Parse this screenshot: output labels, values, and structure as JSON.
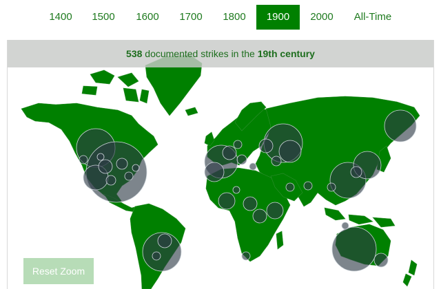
{
  "tabs": [
    {
      "label": "1400",
      "active": false
    },
    {
      "label": "1500",
      "active": false
    },
    {
      "label": "1600",
      "active": false
    },
    {
      "label": "1700",
      "active": false
    },
    {
      "label": "1800",
      "active": false
    },
    {
      "label": "1900",
      "active": true
    },
    {
      "label": "2000",
      "active": false
    },
    {
      "label": "All-Time",
      "active": false
    }
  ],
  "banner": {
    "count": "538",
    "text_middle": " documented strikes in the ",
    "period": "19th century"
  },
  "reset_button": {
    "label": "Reset Zoom"
  },
  "colors": {
    "land": "#008000",
    "accent": "#008000",
    "strike_bubble": "#2d3a45",
    "banner_bg": "#cfd1cf"
  }
}
